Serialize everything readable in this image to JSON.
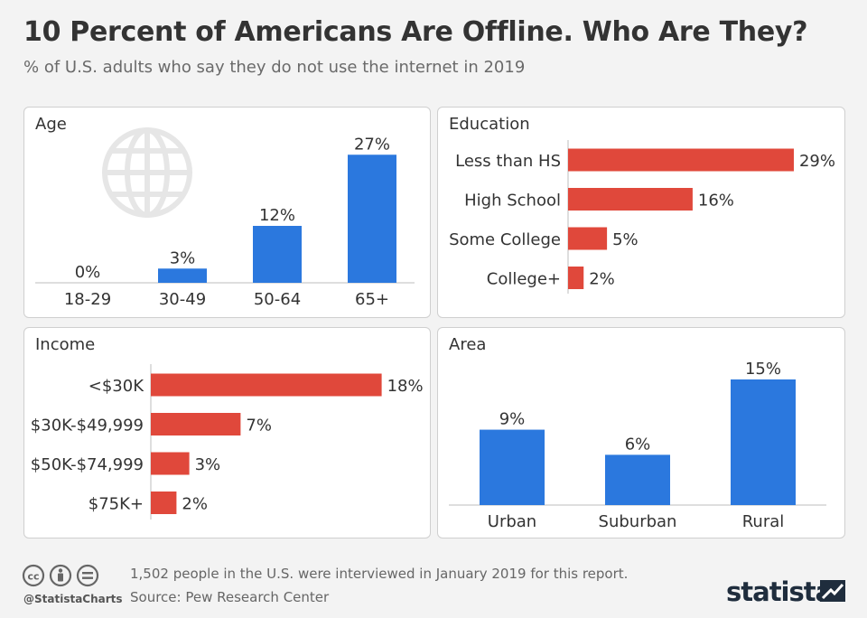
{
  "title": "10 Percent of Americans Are Offline. Who Are They?",
  "subtitle": "% of U.S. adults who say they do not use the internet in 2019",
  "colors": {
    "blue": "#2b78de",
    "red": "#e0483b",
    "axis": "#bdbdbd",
    "globe": "#e6e6e6"
  },
  "chart_data": [
    {
      "id": "age",
      "type": "bar",
      "title": "Age",
      "categories": [
        "18-29",
        "30-49",
        "50-64",
        "65+"
      ],
      "values": [
        0,
        3,
        12,
        27
      ],
      "labels": [
        "0%",
        "3%",
        "12%",
        "27%"
      ],
      "color": "#2b78de",
      "icon": "globe-icon"
    },
    {
      "id": "education",
      "type": "bar",
      "orientation": "horizontal",
      "title": "Education",
      "categories": [
        "Less than HS",
        "High School",
        "Some College",
        "College+"
      ],
      "values": [
        29,
        16,
        5,
        2
      ],
      "labels": [
        "29%",
        "16%",
        "5%",
        "2%"
      ],
      "color": "#e0483b"
    },
    {
      "id": "income",
      "type": "bar",
      "orientation": "horizontal",
      "title": "Income",
      "categories": [
        "<$30K",
        "$30K-$49,999",
        "$50K-$74,999",
        "$75K+"
      ],
      "values": [
        18,
        7,
        3,
        2
      ],
      "labels": [
        "18%",
        "7%",
        "3%",
        "2%"
      ],
      "color": "#e0483b"
    },
    {
      "id": "area",
      "type": "bar",
      "title": "Area",
      "categories": [
        "Urban",
        "Suburban",
        "Rural"
      ],
      "values": [
        9,
        6,
        15
      ],
      "labels": [
        "9%",
        "6%",
        "15%"
      ],
      "color": "#2b78de"
    }
  ],
  "footer": {
    "handle": "@StatistaCharts",
    "note": "1,502 people in the U.S. were interviewed in January 2019 for this report.",
    "source": "Source: Pew Research Center",
    "brand": "statista",
    "icons": [
      "cc-icon",
      "by-icon",
      "nd-icon"
    ]
  }
}
